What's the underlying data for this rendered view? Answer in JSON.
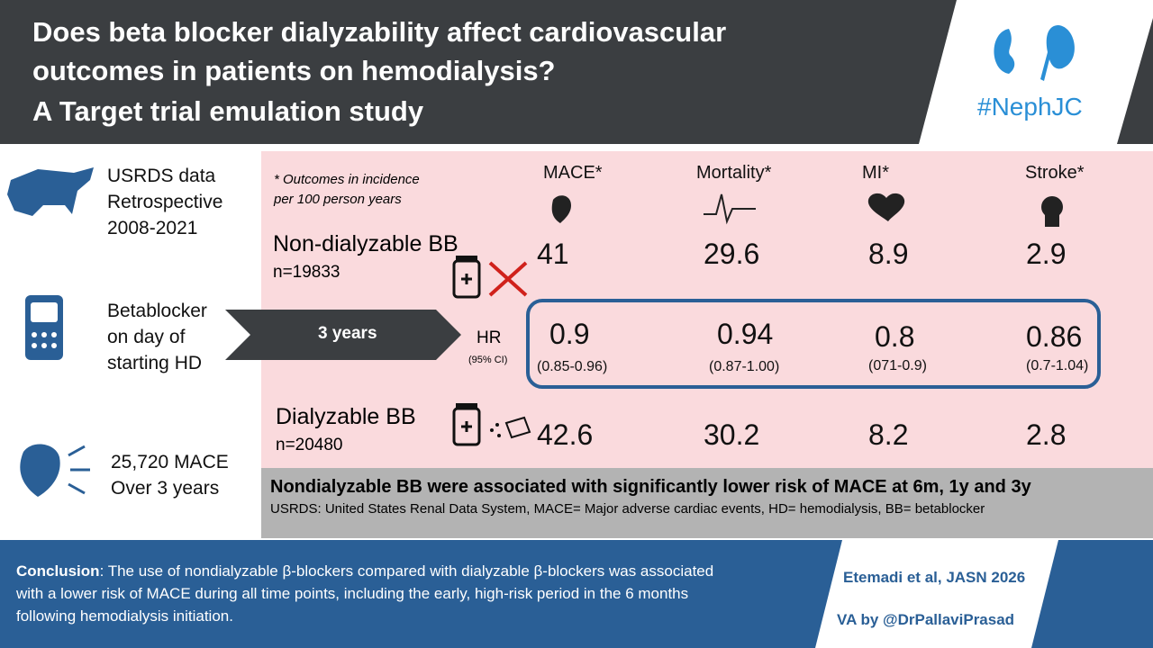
{
  "header": {
    "title_lines": [
      "Does beta blocker dialyzability affect cardiovascular",
      "outcomes in patients on hemodialysis?",
      "A Target trial emulation study"
    ],
    "brand": "#NephJC"
  },
  "left": {
    "data": [
      "USRDS data",
      "Retrospective",
      "2008-2021"
    ],
    "exposure": [
      "Betablocker",
      "on day of",
      "starting HD"
    ],
    "outcome": [
      "25,720 MACE",
      "Over 3 years"
    ]
  },
  "table": {
    "note": [
      "* Outcomes in incidence",
      "per 100 person years"
    ],
    "columns": [
      "MACE*",
      "Mortality*",
      "MI*",
      "Stroke*"
    ],
    "non_dialyzable": {
      "name": "Non-dialyzable BB",
      "n": "n=19833",
      "values": [
        41,
        29.6,
        8.9,
        2.9
      ]
    },
    "follow_up": "3 years",
    "hr": {
      "label": "HR",
      "ci_label": "(95% CI)",
      "values": [
        0.9,
        0.94,
        0.8,
        0.86
      ],
      "ci": [
        "(0.85-0.96)",
        "(0.87-1.00)",
        "(071-0.9)",
        "(0.7-1.04)"
      ]
    },
    "dialyzable": {
      "name": "Dialyzable BB",
      "n": "n=20480",
      "values": [
        42.6,
        30.2,
        8.2,
        2.8
      ]
    }
  },
  "summary": {
    "headline": "Nondialyzable BB were associated with significantly lower risk of MACE at 6m, 1y and 3y",
    "abbreviations": "USRDS: United States Renal Data System, MACE= Major adverse cardiac events, HD= hemodialysis, BB= betablocker"
  },
  "footer": {
    "conclusion_label": "Conclusion",
    "conclusion_text": ": The use of nondialyzable β-blockers compared with dialyzable β-blockers was associated with a lower risk of MACE during all time points, including the early, high-risk period in the 6 months following hemodialysis initiation.",
    "citation": "Etemadi et al, JASN 2026",
    "credit": "VA by @DrPallaviPrasad"
  }
}
